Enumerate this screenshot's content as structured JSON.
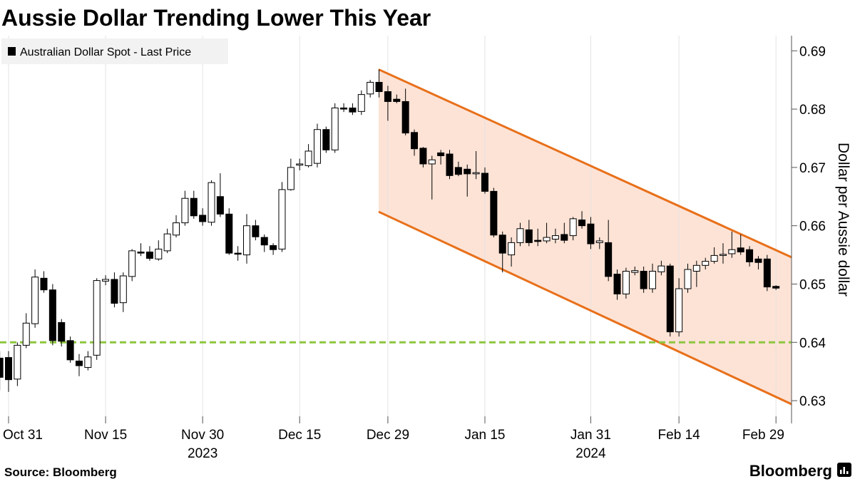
{
  "chart_data": {
    "type": "candlestick",
    "title": "Aussie Dollar Trending Lower This Year",
    "y_axis_label": "Dollar per Aussie dollar",
    "source": "Source: Bloomberg",
    "brand": "Bloomberg",
    "categories": [
      null,
      "Oct 31",
      null,
      null,
      null,
      null,
      null,
      null,
      null,
      null,
      null,
      null,
      "Nov 15",
      null,
      null,
      null,
      null,
      null,
      null,
      null,
      null,
      null,
      null,
      "Nov 30",
      null,
      null,
      null,
      null,
      null,
      null,
      null,
      null,
      null,
      null,
      "Dec 15",
      null,
      null,
      null,
      null,
      null,
      null,
      null,
      null,
      null,
      "Dec 29",
      null,
      null,
      null,
      null,
      null,
      null,
      null,
      null,
      null,
      null,
      "Jan 15",
      null,
      null,
      null,
      null,
      null,
      null,
      null,
      null,
      null,
      null,
      null,
      "Jan 31",
      null,
      null,
      null,
      null,
      null,
      null,
      null,
      null,
      null,
      "Feb 14",
      null,
      null,
      null,
      null,
      null,
      null,
      null,
      null,
      null,
      null,
      "Feb 29"
    ],
    "sublabels": [
      null,
      null,
      null,
      null,
      null,
      null,
      null,
      null,
      null,
      null,
      null,
      null,
      null,
      null,
      null,
      null,
      null,
      null,
      null,
      null,
      null,
      null,
      null,
      "2023",
      null,
      null,
      null,
      null,
      null,
      null,
      null,
      null,
      null,
      null,
      null,
      null,
      null,
      null,
      null,
      null,
      null,
      null,
      null,
      null,
      null,
      null,
      null,
      null,
      null,
      null,
      null,
      null,
      null,
      null,
      null,
      null,
      null,
      null,
      null,
      null,
      null,
      null,
      null,
      null,
      null,
      null,
      null,
      "2024",
      null,
      null,
      null,
      null,
      null,
      null,
      null,
      null,
      null,
      null,
      null,
      null,
      null,
      null,
      null,
      null,
      null,
      null,
      null,
      null,
      null
    ],
    "series": [
      {
        "name": "Australian Dollar Spot - Last Price",
        "up_color": "#ffffff",
        "down_color": "#000000",
        "open": [
          0.6373,
          0.6374,
          0.6337,
          0.6395,
          0.6432,
          0.651,
          0.649,
          0.6434,
          0.6403,
          0.6368,
          0.6357,
          0.6378,
          0.6505,
          0.6508,
          0.6468,
          0.6513,
          0.6555,
          0.6555,
          0.6543,
          0.6557,
          0.6584,
          0.6605,
          0.6647,
          0.6618,
          0.6606,
          0.665,
          0.662,
          0.6553,
          0.655,
          0.66,
          0.658,
          0.6566,
          0.656,
          0.6662,
          0.6704,
          0.6703,
          0.6707,
          0.6765,
          0.673,
          0.6802,
          0.6802,
          0.6796,
          0.6826,
          0.6846,
          0.683,
          0.6817,
          0.6813,
          0.676,
          0.6733,
          0.6706,
          0.6725,
          0.6723,
          0.67,
          0.6697,
          0.6689,
          0.669,
          0.6659,
          0.6584,
          0.655,
          0.6571,
          0.6593,
          0.6575,
          0.6574,
          0.6577,
          0.6585,
          0.6583,
          0.661,
          0.6603,
          0.6571,
          0.6571,
          0.6517,
          0.6483,
          0.652,
          0.6522,
          0.6492,
          0.6521,
          0.6531,
          0.6418,
          0.6492,
          0.6522,
          0.6532,
          0.6539,
          0.6549,
          0.6552,
          0.6562,
          0.6559,
          0.6543,
          0.6543,
          0.6496
        ],
        "high": [
          0.6385,
          0.6385,
          0.64,
          0.645,
          0.6525,
          0.6522,
          0.65,
          0.644,
          0.641,
          0.638,
          0.6385,
          0.651,
          0.6515,
          0.652,
          0.652,
          0.656,
          0.657,
          0.6565,
          0.6575,
          0.6595,
          0.6618,
          0.666,
          0.666,
          0.663,
          0.6678,
          0.669,
          0.663,
          0.6565,
          0.662,
          0.661,
          0.6585,
          0.657,
          0.6675,
          0.6715,
          0.6715,
          0.674,
          0.6775,
          0.677,
          0.681,
          0.681,
          0.681,
          0.6832,
          0.685,
          0.6868,
          0.684,
          0.6825,
          0.6835,
          0.6765,
          0.6735,
          0.672,
          0.673,
          0.673,
          0.671,
          0.6705,
          0.6728,
          0.67,
          0.6665,
          0.659,
          0.658,
          0.6605,
          0.661,
          0.6595,
          0.6605,
          0.6595,
          0.6605,
          0.6615,
          0.6625,
          0.6615,
          0.658,
          0.661,
          0.6525,
          0.6528,
          0.653,
          0.653,
          0.6535,
          0.654,
          0.6535,
          0.651,
          0.6535,
          0.654,
          0.6545,
          0.6563,
          0.657,
          0.659,
          0.6585,
          0.6565,
          0.6548,
          0.655,
          0.6498
        ],
        "low": [
          0.6318,
          0.6315,
          0.6325,
          0.639,
          0.6425,
          0.6485,
          0.6395,
          0.6393,
          0.6365,
          0.6342,
          0.6352,
          0.637,
          0.6498,
          0.646,
          0.6452,
          0.6505,
          0.6548,
          0.654,
          0.654,
          0.6553,
          0.658,
          0.66,
          0.6612,
          0.66,
          0.66,
          0.6615,
          0.655,
          0.654,
          0.6535,
          0.6575,
          0.6555,
          0.655,
          0.6555,
          0.666,
          0.6695,
          0.67,
          0.67,
          0.6725,
          0.6725,
          0.6795,
          0.679,
          0.679,
          0.682,
          0.682,
          0.678,
          0.681,
          0.6755,
          0.672,
          0.67,
          0.6645,
          0.6705,
          0.668,
          0.6685,
          0.665,
          0.668,
          0.6655,
          0.658,
          0.652,
          0.653,
          0.6565,
          0.6565,
          0.6565,
          0.657,
          0.657,
          0.657,
          0.6575,
          0.6595,
          0.656,
          0.656,
          0.6505,
          0.6473,
          0.6475,
          0.6515,
          0.6485,
          0.6485,
          0.6515,
          0.641,
          0.641,
          0.6485,
          0.6495,
          0.6525,
          0.6535,
          0.6535,
          0.6545,
          0.655,
          0.653,
          0.6525,
          0.6488,
          0.649
        ],
        "close": [
          0.634,
          0.6336,
          0.6395,
          0.6433,
          0.6512,
          0.649,
          0.6403,
          0.6402,
          0.637,
          0.636,
          0.6375,
          0.6506,
          0.6508,
          0.6467,
          0.6514,
          0.6557,
          0.6553,
          0.6544,
          0.656,
          0.6586,
          0.6605,
          0.6647,
          0.6617,
          0.6607,
          0.6674,
          0.662,
          0.6553,
          0.6552,
          0.66,
          0.6581,
          0.6567,
          0.6559,
          0.6662,
          0.67,
          0.6706,
          0.6728,
          0.6765,
          0.673,
          0.6802,
          0.68,
          0.6795,
          0.6825,
          0.6846,
          0.683,
          0.6813,
          0.6813,
          0.6759,
          0.6732,
          0.6706,
          0.6713,
          0.672,
          0.6686,
          0.6688,
          0.6689,
          0.6691,
          0.6659,
          0.6584,
          0.6553,
          0.6571,
          0.6595,
          0.6571,
          0.6573,
          0.658,
          0.6583,
          0.6575,
          0.6612,
          0.66,
          0.6569,
          0.6574,
          0.6513,
          0.6483,
          0.6522,
          0.6523,
          0.6492,
          0.6522,
          0.6531,
          0.6418,
          0.6492,
          0.6525,
          0.6532,
          0.6539,
          0.6549,
          0.6551,
          0.6559,
          0.6555,
          0.6538,
          0.6537,
          0.6495,
          0.6493
        ]
      }
    ],
    "reference_line": {
      "value": 0.64,
      "color": "#8dc63f"
    },
    "channel": {
      "upper": [
        0.6868,
        0.6546
      ],
      "lower": [
        0.6624,
        0.6294
      ],
      "color": "#e8701a",
      "fill": "#fde3d6"
    },
    "ylim": [
      0.6261,
      0.6926
    ],
    "yticks": [
      0.63,
      0.64,
      0.65,
      0.66,
      0.67,
      0.68,
      0.69
    ],
    "x_grid": true,
    "legend": "top-left"
  }
}
